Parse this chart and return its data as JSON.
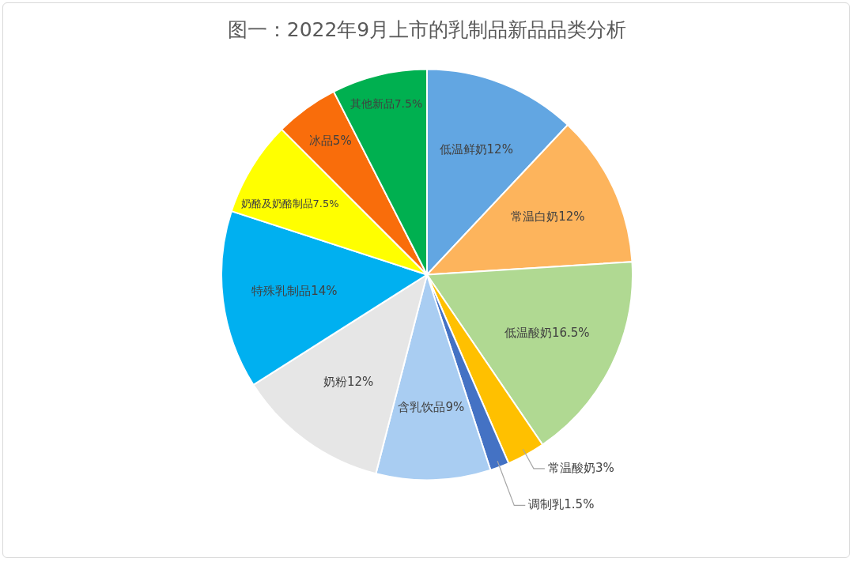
{
  "chart_data": {
    "type": "pie",
    "title": "图一：2022年9月上市的乳制品新品品类分析",
    "categories": [
      "低温鲜奶",
      "常温白奶",
      "低温酸奶",
      "常温酸奶",
      "调制乳",
      "含乳饮品",
      "奶粉",
      "特殊乳制品",
      "奶酪及奶酪制品",
      "冰品",
      "其他新品"
    ],
    "values": [
      12,
      12,
      16.5,
      3,
      1.5,
      9,
      12,
      14,
      7.5,
      5,
      7.5
    ],
    "colors": [
      "#62a6e2",
      "#fdb45c",
      "#b0d992",
      "#ffc000",
      "#4472c4",
      "#a9cdf2",
      "#e6e6e6",
      "#00b0f0",
      "#ffff00",
      "#f96d0b",
      "#00b050"
    ],
    "value_labels": [
      "12%",
      "12%",
      "16.5%",
      "3%",
      "1.5%",
      "9%",
      "12%",
      "14%",
      "7.5%",
      "5%",
      "7.5%"
    ]
  }
}
